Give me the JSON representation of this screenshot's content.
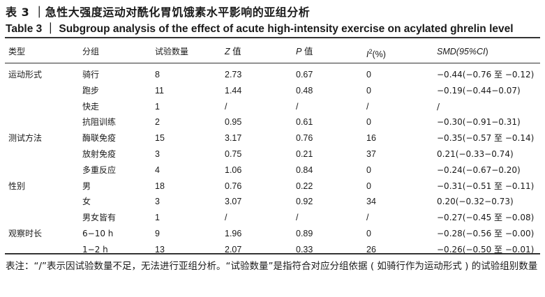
{
  "title_cn": "表 3 ｜急性大强度运动对酰化胃饥饿素水平影响的亚组分析",
  "title_en": "Table 3 ｜ Subgroup analysis of the effect of acute high-intensity exercise on acylated ghrelin level",
  "headers": {
    "type": "类型",
    "group": "分组",
    "n": "试验数量",
    "z_sym": "Z",
    "z_val": " 值",
    "p_sym": "P",
    "p_val": " 值",
    "i2_sym": "I",
    "i2_sup": "2",
    "i2_unit": "(%)",
    "smd_pre": "SMD(95%",
    "smd_ci": "CI",
    "smd_post": ")"
  },
  "rows": [
    {
      "type": "运动形式",
      "group": "骑行",
      "n": "8",
      "z": "2.73",
      "p": "0.67",
      "i2": "0",
      "smd": "−0.44(−0.76 至 −0.12)"
    },
    {
      "type": "",
      "group": "跑步",
      "n": "11",
      "z": "1.44",
      "p": "0.48",
      "i2": "0",
      "smd": "−0.19(−0.44−0.07)"
    },
    {
      "type": "",
      "group": "快走",
      "n": "1",
      "z": "/",
      "p": "/",
      "i2": "/",
      "smd": "/"
    },
    {
      "type": "",
      "group": "抗阻训练",
      "n": "2",
      "z": "0.95",
      "p": "0.61",
      "i2": "0",
      "smd": "−0.30(−0.91−0.31)"
    },
    {
      "type": "测试方法",
      "group": "酶联免疫",
      "n": "15",
      "z": "3.17",
      "p": "0.76",
      "i2": "16",
      "smd": "−0.35(−0.57 至 −0.14)"
    },
    {
      "type": "",
      "group": "放射免疫",
      "n": "3",
      "z": "0.75",
      "p": "0.21",
      "i2": "37",
      "smd": "0.21(−0.33−0.74)"
    },
    {
      "type": "",
      "group": "多重反应",
      "n": "4",
      "z": "1.06",
      "p": "0.84",
      "i2": "0",
      "smd": "−0.24(−0.67−0.20)"
    },
    {
      "type": "性别",
      "group": "男",
      "n": "18",
      "z": "0.76",
      "p": "0.22",
      "i2": "0",
      "smd": "−0.31(−0.51 至 −0.11)"
    },
    {
      "type": "",
      "group": "女",
      "n": "3",
      "z": "3.07",
      "p": "0.92",
      "i2": "34",
      "smd": "0.20(−0.32−0.73)"
    },
    {
      "type": "",
      "group": "男女皆有",
      "n": "1",
      "z": "/",
      "p": "/",
      "i2": "/",
      "smd": "−0.27(−0.45 至 −0.08)"
    },
    {
      "type": "观察时长",
      "group": "6−10 h",
      "n": "9",
      "z": "1.96",
      "p": "0.89",
      "i2": "0",
      "smd": "−0.28(−0.56 至 −0.00)"
    },
    {
      "type": "",
      "group": "1−2 h",
      "n": "13",
      "z": "2.07",
      "p": "0.33",
      "i2": "26",
      "smd": "−0.26(−0.50 至 −0.01)"
    }
  ],
  "note": "表注：“/”表示因试验数量不足，无法进行亚组分析。“试验数量”是指符合对应分组依据 ( 如骑行作为运动形式 ) 的试验组别数量"
}
